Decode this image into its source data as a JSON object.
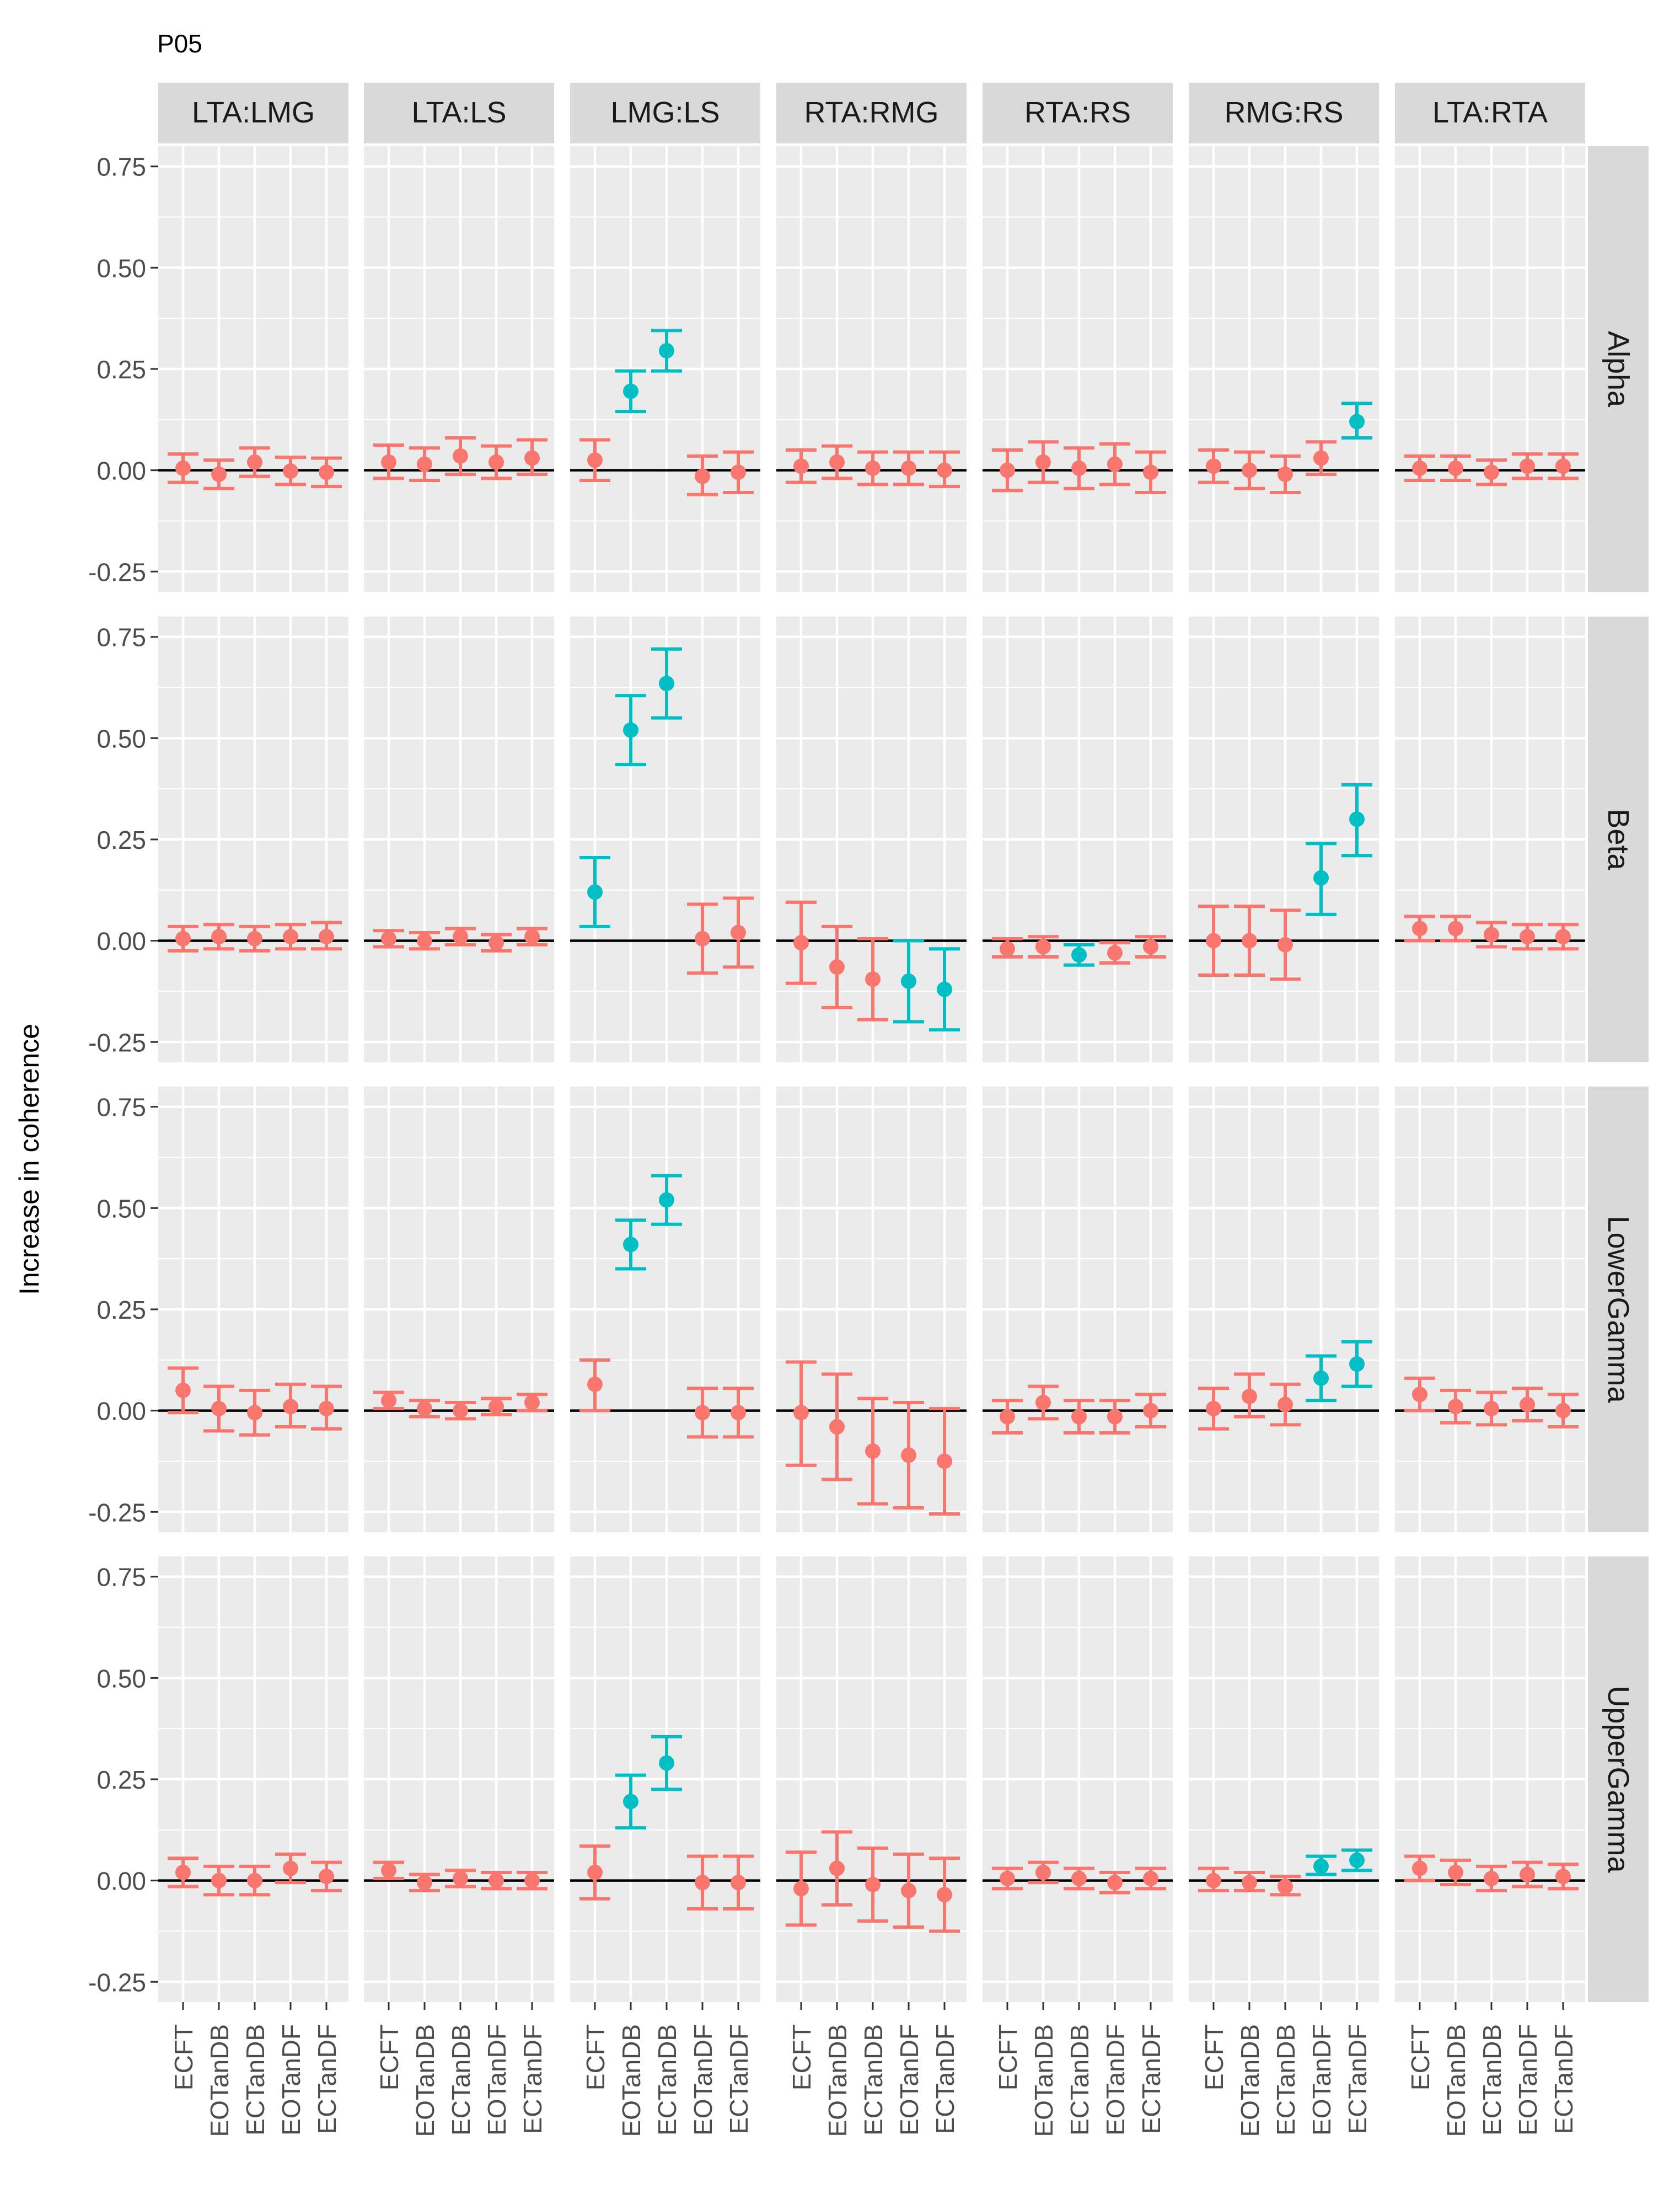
{
  "figure": {
    "title": "P05",
    "ylabel": "Increase in coherence"
  },
  "chart_data": {
    "type": "scatter",
    "subtype": "point-with-errorbars, faceted grid",
    "title": "P05",
    "xlabel": "",
    "ylabel": "Increase in coherence",
    "ylim": [
      -0.25,
      0.75
    ],
    "yticks": [
      -0.25,
      0.0,
      0.25,
      0.5,
      0.75
    ],
    "ytick_labels": [
      "-0.25",
      "0.00",
      "0.25",
      "0.50",
      "0.75"
    ],
    "grid": true,
    "reference_line": 0,
    "colors": {
      "not_significant": "#F8766D",
      "significant": "#00BFC4",
      "panel_bg": "#EBEBEB",
      "strip_bg": "#D9D9D9"
    },
    "categories": [
      "ECFT",
      "EOTanDB",
      "ECTanDB",
      "EOTanDF",
      "ECTanDF"
    ],
    "columns": [
      "LTA:LMG",
      "LTA:LS",
      "LMG:LS",
      "RTA:RMG",
      "RTA:RS",
      "RMG:RS",
      "LTA:RTA"
    ],
    "rows": [
      "Alpha",
      "Beta",
      "LowerGamma",
      "UpperGamma"
    ],
    "panels": [
      [
        [
          [
            0.005,
            -0.03,
            0.04,
            0
          ],
          [
            -0.01,
            -0.045,
            0.025,
            0
          ],
          [
            0.02,
            -0.015,
            0.055,
            0
          ],
          [
            -0.002,
            -0.035,
            0.032,
            0
          ],
          [
            -0.005,
            -0.04,
            0.03,
            0
          ]
        ],
        [
          [
            0.02,
            -0.02,
            0.062,
            0
          ],
          [
            0.015,
            -0.025,
            0.055,
            0
          ],
          [
            0.035,
            -0.01,
            0.08,
            0
          ],
          [
            0.02,
            -0.02,
            0.06,
            0
          ],
          [
            0.03,
            -0.01,
            0.075,
            0
          ]
        ],
        [
          [
            0.025,
            -0.025,
            0.075,
            0
          ],
          [
            0.195,
            0.145,
            0.245,
            1
          ],
          [
            0.295,
            0.245,
            0.345,
            1
          ],
          [
            -0.015,
            -0.06,
            0.035,
            0
          ],
          [
            -0.005,
            -0.055,
            0.045,
            0
          ]
        ],
        [
          [
            0.01,
            -0.03,
            0.05,
            0
          ],
          [
            0.02,
            -0.02,
            0.06,
            0
          ],
          [
            0.005,
            -0.035,
            0.045,
            0
          ],
          [
            0.005,
            -0.035,
            0.045,
            0
          ],
          [
            0.0,
            -0.04,
            0.045,
            0
          ]
        ],
        [
          [
            0.0,
            -0.05,
            0.05,
            0
          ],
          [
            0.02,
            -0.03,
            0.07,
            0
          ],
          [
            0.005,
            -0.045,
            0.055,
            0
          ],
          [
            0.015,
            -0.035,
            0.065,
            0
          ],
          [
            -0.005,
            -0.055,
            0.045,
            0
          ]
        ],
        [
          [
            0.01,
            -0.03,
            0.05,
            0
          ],
          [
            0.0,
            -0.045,
            0.045,
            0
          ],
          [
            -0.01,
            -0.055,
            0.035,
            0
          ],
          [
            0.03,
            -0.01,
            0.07,
            0
          ],
          [
            0.12,
            0.08,
            0.165,
            1
          ]
        ],
        [
          [
            0.005,
            -0.025,
            0.035,
            0
          ],
          [
            0.005,
            -0.025,
            0.035,
            0
          ],
          [
            -0.005,
            -0.035,
            0.025,
            0
          ],
          [
            0.01,
            -0.02,
            0.04,
            0
          ],
          [
            0.01,
            -0.02,
            0.04,
            0
          ]
        ]
      ],
      [
        [
          [
            0.005,
            -0.025,
            0.035,
            0
          ],
          [
            0.01,
            -0.02,
            0.04,
            0
          ],
          [
            0.005,
            -0.025,
            0.035,
            0
          ],
          [
            0.01,
            -0.02,
            0.04,
            0
          ],
          [
            0.01,
            -0.02,
            0.045,
            0
          ]
        ],
        [
          [
            0.005,
            -0.015,
            0.025,
            0
          ],
          [
            0.0,
            -0.02,
            0.02,
            0
          ],
          [
            0.01,
            -0.01,
            0.03,
            0
          ],
          [
            -0.005,
            -0.025,
            0.015,
            0
          ],
          [
            0.01,
            -0.01,
            0.03,
            0
          ]
        ],
        [
          [
            0.12,
            0.035,
            0.205,
            1
          ],
          [
            0.52,
            0.435,
            0.605,
            1
          ],
          [
            0.635,
            0.55,
            0.72,
            1
          ],
          [
            0.005,
            -0.08,
            0.09,
            0
          ],
          [
            0.02,
            -0.065,
            0.105,
            0
          ]
        ],
        [
          [
            -0.005,
            -0.105,
            0.095,
            0
          ],
          [
            -0.065,
            -0.165,
            0.035,
            0
          ],
          [
            -0.095,
            -0.195,
            0.005,
            0
          ],
          [
            -0.1,
            -0.2,
            0.0,
            1
          ],
          [
            -0.12,
            -0.22,
            -0.02,
            1
          ]
        ],
        [
          [
            -0.02,
            -0.04,
            0.005,
            0
          ],
          [
            -0.015,
            -0.04,
            0.01,
            0
          ],
          [
            -0.035,
            -0.06,
            -0.01,
            1
          ],
          [
            -0.03,
            -0.055,
            -0.005,
            0
          ],
          [
            -0.015,
            -0.04,
            0.01,
            0
          ]
        ],
        [
          [
            0.0,
            -0.085,
            0.085,
            0
          ],
          [
            0.0,
            -0.085,
            0.085,
            0
          ],
          [
            -0.01,
            -0.095,
            0.075,
            0
          ],
          [
            0.155,
            0.065,
            0.24,
            1
          ],
          [
            0.3,
            0.21,
            0.385,
            1
          ]
        ],
        [
          [
            0.03,
            0.0,
            0.06,
            0
          ],
          [
            0.03,
            0.0,
            0.06,
            0
          ],
          [
            0.015,
            -0.015,
            0.045,
            0
          ],
          [
            0.01,
            -0.02,
            0.04,
            0
          ],
          [
            0.01,
            -0.02,
            0.04,
            0
          ]
        ]
      ],
      [
        [
          [
            0.05,
            -0.005,
            0.105,
            0
          ],
          [
            0.005,
            -0.05,
            0.06,
            0
          ],
          [
            -0.005,
            -0.06,
            0.05,
            0
          ],
          [
            0.01,
            -0.04,
            0.065,
            0
          ],
          [
            0.005,
            -0.045,
            0.06,
            0
          ]
        ],
        [
          [
            0.025,
            0.005,
            0.045,
            0
          ],
          [
            0.005,
            -0.015,
            0.025,
            0
          ],
          [
            0.0,
            -0.02,
            0.02,
            0
          ],
          [
            0.01,
            -0.01,
            0.03,
            0
          ],
          [
            0.02,
            0.0,
            0.04,
            0
          ]
        ],
        [
          [
            0.065,
            0.0,
            0.125,
            0
          ],
          [
            0.41,
            0.35,
            0.47,
            1
          ],
          [
            0.52,
            0.46,
            0.58,
            1
          ],
          [
            -0.005,
            -0.065,
            0.055,
            0
          ],
          [
            -0.005,
            -0.065,
            0.055,
            0
          ]
        ],
        [
          [
            -0.005,
            -0.135,
            0.12,
            0
          ],
          [
            -0.04,
            -0.17,
            0.09,
            0
          ],
          [
            -0.1,
            -0.23,
            0.03,
            0
          ],
          [
            -0.11,
            -0.24,
            0.02,
            0
          ],
          [
            -0.125,
            -0.255,
            0.005,
            0
          ]
        ],
        [
          [
            -0.015,
            -0.055,
            0.025,
            0
          ],
          [
            0.02,
            -0.02,
            0.06,
            0
          ],
          [
            -0.015,
            -0.055,
            0.025,
            0
          ],
          [
            -0.015,
            -0.055,
            0.025,
            0
          ],
          [
            0.0,
            -0.04,
            0.04,
            0
          ]
        ],
        [
          [
            0.005,
            -0.045,
            0.055,
            0
          ],
          [
            0.035,
            -0.015,
            0.09,
            0
          ],
          [
            0.015,
            -0.035,
            0.065,
            0
          ],
          [
            0.08,
            0.025,
            0.135,
            1
          ],
          [
            0.115,
            0.06,
            0.17,
            1
          ]
        ],
        [
          [
            0.04,
            0.0,
            0.08,
            0
          ],
          [
            0.01,
            -0.03,
            0.05,
            0
          ],
          [
            0.005,
            -0.035,
            0.045,
            0
          ],
          [
            0.015,
            -0.025,
            0.055,
            0
          ],
          [
            0.0,
            -0.04,
            0.04,
            0
          ]
        ]
      ],
      [
        [
          [
            0.02,
            -0.015,
            0.055,
            0
          ],
          [
            0.0,
            -0.035,
            0.035,
            0
          ],
          [
            0.0,
            -0.035,
            0.035,
            0
          ],
          [
            0.03,
            -0.005,
            0.065,
            0
          ],
          [
            0.01,
            -0.025,
            0.045,
            0
          ]
        ],
        [
          [
            0.025,
            0.005,
            0.045,
            0
          ],
          [
            -0.005,
            -0.025,
            0.015,
            0
          ],
          [
            0.005,
            -0.015,
            0.025,
            0
          ],
          [
            0.0,
            -0.02,
            0.02,
            0
          ],
          [
            0.0,
            -0.02,
            0.02,
            0
          ]
        ],
        [
          [
            0.02,
            -0.045,
            0.085,
            0
          ],
          [
            0.195,
            0.13,
            0.26,
            1
          ],
          [
            0.29,
            0.225,
            0.355,
            1
          ],
          [
            -0.005,
            -0.07,
            0.06,
            0
          ],
          [
            -0.005,
            -0.07,
            0.06,
            0
          ]
        ],
        [
          [
            -0.02,
            -0.11,
            0.07,
            0
          ],
          [
            0.03,
            -0.06,
            0.12,
            0
          ],
          [
            -0.01,
            -0.1,
            0.08,
            0
          ],
          [
            -0.025,
            -0.115,
            0.065,
            0
          ],
          [
            -0.035,
            -0.125,
            0.055,
            0
          ]
        ],
        [
          [
            0.005,
            -0.02,
            0.03,
            0
          ],
          [
            0.02,
            -0.005,
            0.045,
            0
          ],
          [
            0.005,
            -0.02,
            0.03,
            0
          ],
          [
            -0.005,
            -0.03,
            0.02,
            0
          ],
          [
            0.005,
            -0.02,
            0.03,
            0
          ]
        ],
        [
          [
            0.0,
            -0.025,
            0.03,
            0
          ],
          [
            -0.005,
            -0.025,
            0.02,
            0
          ],
          [
            -0.015,
            -0.035,
            0.01,
            0
          ],
          [
            0.035,
            0.015,
            0.06,
            1
          ],
          [
            0.05,
            0.025,
            0.075,
            1
          ]
        ],
        [
          [
            0.03,
            0.0,
            0.06,
            0
          ],
          [
            0.02,
            -0.01,
            0.05,
            0
          ],
          [
            0.005,
            -0.025,
            0.035,
            0
          ],
          [
            0.015,
            -0.015,
            0.045,
            0
          ],
          [
            0.01,
            -0.02,
            0.04,
            0
          ]
        ]
      ]
    ]
  }
}
